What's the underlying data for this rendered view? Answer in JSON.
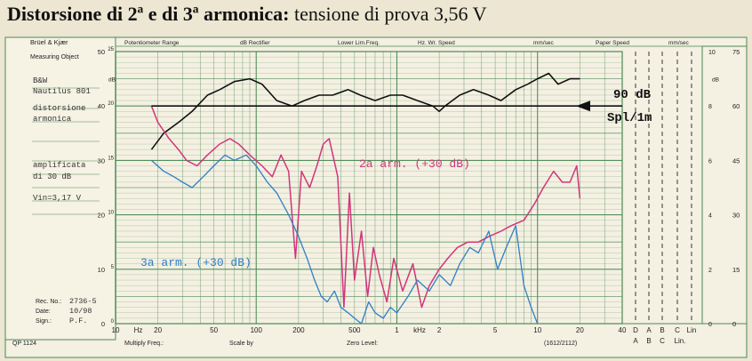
{
  "title": {
    "bold_part": "Distorsione di 2ª e di 3ª armonica:",
    "normal_part": " tensione di prova 3,56 V"
  },
  "form": {
    "brand": "Brüel & Kjær",
    "measuring_object": "Measuring Object",
    "header_fields": [
      "Potentiometer Range",
      "dB Rectifier",
      "Lower Lim.Freq.",
      "Hz. Wr. Speed",
      "mm/sec",
      "Paper Speed",
      "mm/sec"
    ],
    "handwritten_notes": [
      "B&W",
      "Nautilus 801",
      "distorsione",
      "armonica",
      "amplificata",
      "di 30 dB",
      "Vin=3,17 V"
    ],
    "rec_no_label": "Rec. No.:",
    "rec_no_value": "2736-5",
    "date_label": "Date:",
    "date_value": "10/98",
    "sign_label": "Sign.:",
    "sign_value": "P.F.",
    "qp": "QP 1124",
    "multiply_freq": "Multiply Freq.:",
    "scale_by": "Scale by",
    "zero_level": "Zero Level:",
    "paper_code": "(1612/2112)",
    "db_unit": "dB",
    "left_scale_outer": [
      "50",
      "40",
      "30",
      "20",
      "10",
      "0"
    ],
    "left_scale_inner": [
      "25",
      "20",
      "15",
      "10",
      "5",
      "0"
    ],
    "right_scale_inner": [
      "10",
      "8",
      "6",
      "4",
      "2",
      "0"
    ],
    "right_scale_outer": [
      "75",
      "60",
      "45",
      "30",
      "15",
      "0"
    ],
    "weighting_top": [
      "D",
      "A",
      "B",
      "C",
      "Lin"
    ],
    "weighting_bottom": [
      "A",
      "B",
      "C",
      "Lin."
    ]
  },
  "annotations": {
    "ref_level_line1": "90 dB",
    "ref_level_line2": "Spl/1m",
    "second_harmonic": "2a arm. (+30 dB)",
    "third_harmonic": "3a arm. (+30 dB)"
  },
  "colors": {
    "grid": "#4a8a55",
    "fundamental": "#111111",
    "second_harmonic": "#d2357a",
    "third_harmonic": "#2f7fc8",
    "annotation_ink": "#111111"
  },
  "chart_data": {
    "type": "line",
    "x_scale": "log",
    "xlim": [
      10,
      40000
    ],
    "ylim": [
      0,
      50
    ],
    "x_tick_labels": [
      "10",
      "Hz",
      "20",
      "50",
      "100",
      "200",
      "500",
      "1",
      "kHz",
      "2",
      "5",
      "10",
      "20",
      "40"
    ],
    "grid": true,
    "reference_level_db": 40,
    "series": [
      {
        "name": "90 dB Spl/1m",
        "x": [
          18,
          22,
          28,
          35,
          45,
          55,
          70,
          90,
          110,
          140,
          180,
          220,
          280,
          350,
          450,
          550,
          700,
          900,
          1100,
          1400,
          1800,
          2000,
          2200,
          2800,
          3500,
          4500,
          5500,
          7000,
          8500,
          10000,
          12000,
          14000,
          17000,
          20000
        ],
        "y": [
          32,
          35,
          37,
          39,
          42,
          43,
          44.5,
          45,
          44,
          41,
          40,
          41,
          42,
          42,
          43,
          42,
          41,
          42,
          42,
          41,
          40,
          39,
          40,
          42,
          43,
          42,
          41,
          43,
          44,
          45,
          46,
          44,
          45,
          45
        ]
      },
      {
        "name": "2a arm. (+30 dB)",
        "x": [
          18,
          20,
          24,
          28,
          32,
          38,
          45,
          55,
          65,
          75,
          90,
          110,
          130,
          150,
          170,
          190,
          210,
          240,
          270,
          300,
          330,
          380,
          420,
          460,
          500,
          560,
          620,
          680,
          750,
          850,
          950,
          1100,
          1300,
          1500,
          1700,
          2000,
          2300,
          2700,
          3200,
          3800,
          4500,
          5500,
          6500,
          8000,
          9500,
          11000,
          13000,
          15000,
          17000,
          19000,
          20000
        ],
        "y": [
          40,
          37,
          34,
          32,
          30,
          29,
          31,
          33,
          34,
          33,
          31,
          29,
          27,
          31,
          28,
          12,
          28,
          25,
          29,
          33,
          34,
          27,
          3,
          24,
          8,
          17,
          5,
          14,
          9,
          4,
          12,
          6,
          11,
          3,
          7,
          10,
          12,
          14,
          15,
          15,
          16,
          17,
          18,
          19,
          22,
          25,
          28,
          26,
          26,
          29,
          23
        ]
      },
      {
        "name": "3a arm. (+30 dB)",
        "x": [
          18,
          22,
          26,
          30,
          35,
          42,
          50,
          60,
          70,
          85,
          100,
          120,
          140,
          170,
          200,
          230,
          260,
          290,
          320,
          360,
          400,
          450,
          500,
          560,
          630,
          700,
          800,
          900,
          1000,
          1200,
          1400,
          1700,
          2000,
          2400,
          2800,
          3300,
          3800,
          4500,
          5200,
          6000,
          7000,
          8000,
          9000,
          10000
        ],
        "y": [
          30,
          28,
          27,
          26,
          25,
          27,
          29,
          31,
          30,
          31,
          29,
          26,
          24,
          20,
          16,
          12,
          8,
          5,
          4,
          6,
          3,
          2,
          1,
          0,
          4,
          2,
          1,
          3,
          2,
          5,
          8,
          6,
          9,
          7,
          11,
          14,
          13,
          17,
          10,
          14,
          18,
          7,
          3,
          0
        ]
      }
    ]
  }
}
